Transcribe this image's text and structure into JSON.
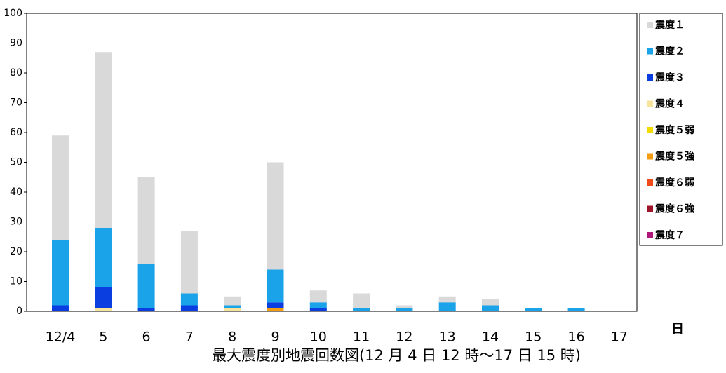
{
  "chart_data": {
    "type": "bar",
    "stacked": true,
    "title": "最大震度別地震回数図(12 月 4 日 12 時～17 日 15 時)",
    "x_unit": "日",
    "categories": [
      "12/4",
      "5",
      "6",
      "7",
      "8",
      "9",
      "10",
      "11",
      "12",
      "13",
      "14",
      "15",
      "16",
      "17"
    ],
    "ylim": [
      0,
      100
    ],
    "yticks": [
      0,
      10,
      20,
      30,
      40,
      50,
      60,
      70,
      80,
      90,
      100
    ],
    "series": [
      {
        "name": "震度７",
        "color": "#b0177a",
        "values": [
          0,
          0,
          0,
          0,
          0,
          0,
          0,
          0,
          0,
          0,
          0,
          0,
          0,
          0
        ]
      },
      {
        "name": "震度６強",
        "color": "#a0142a",
        "values": [
          0,
          0,
          0,
          0,
          0,
          0,
          0,
          0,
          0,
          0,
          0,
          0,
          0,
          0
        ]
      },
      {
        "name": "震度６弱",
        "color": "#f04a1a",
        "values": [
          0,
          0,
          0,
          0,
          0,
          0,
          0,
          0,
          0,
          0,
          0,
          0,
          0,
          0
        ]
      },
      {
        "name": "震度５強",
        "color": "#f39c12",
        "values": [
          0,
          0,
          0,
          0,
          0,
          1,
          0,
          0,
          0,
          0,
          0,
          0,
          0,
          0
        ]
      },
      {
        "name": "震度５弱",
        "color": "#f5dc00",
        "values": [
          0,
          0,
          0,
          0,
          0,
          0,
          0,
          0,
          0,
          0,
          0,
          0,
          0,
          0
        ]
      },
      {
        "name": "震度４",
        "color": "#f8e39a",
        "values": [
          0,
          1,
          0,
          0,
          1,
          0,
          0,
          0,
          0,
          0,
          0,
          0,
          0,
          0
        ]
      },
      {
        "name": "震度３",
        "color": "#0b3ee0",
        "values": [
          2,
          7,
          1,
          2,
          0,
          2,
          1,
          0,
          0,
          0,
          0,
          0,
          0,
          0
        ]
      },
      {
        "name": "震度２",
        "color": "#1aa3e8",
        "values": [
          22,
          20,
          15,
          4,
          1,
          11,
          2,
          1,
          1,
          3,
          2,
          1,
          1,
          0
        ]
      },
      {
        "name": "震度１",
        "color": "#d9d9d9",
        "values": [
          35,
          59,
          29,
          21,
          3,
          36,
          4,
          5,
          1,
          2,
          2,
          0,
          0,
          0
        ]
      }
    ]
  }
}
